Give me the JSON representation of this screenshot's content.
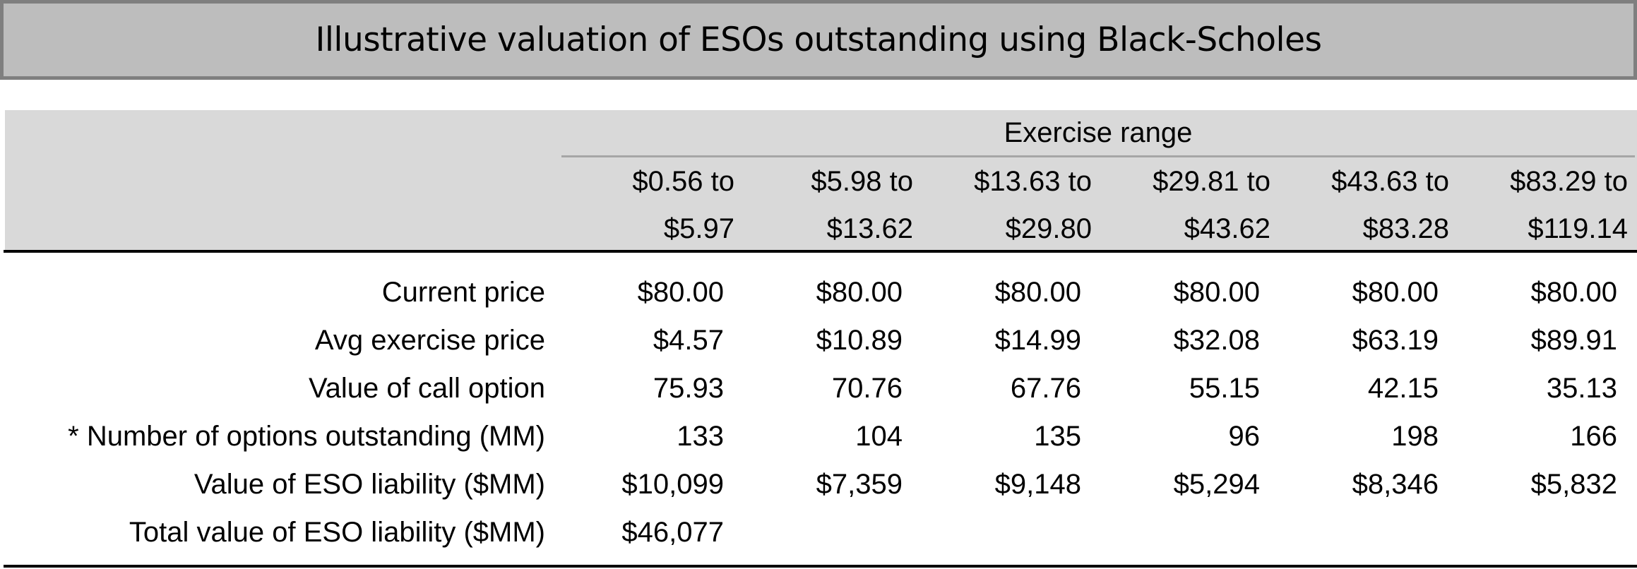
{
  "title": "Illustrative valuation of ESOs outstanding using Black-Scholes",
  "header": {
    "group_label": "Exercise range",
    "columns": [
      {
        "line1": "$0.56 to",
        "line2": "$5.97"
      },
      {
        "line1": "$5.98 to",
        "line2": "$13.62"
      },
      {
        "line1": "$13.63 to",
        "line2": "$29.80"
      },
      {
        "line1": "$29.81 to",
        "line2": "$43.62"
      },
      {
        "line1": "$43.63 to",
        "line2": "$83.28"
      },
      {
        "line1": "$83.29 to",
        "line2": "$119.14"
      }
    ]
  },
  "rows": [
    {
      "label": "Current price",
      "values": [
        "$80.00",
        "$80.00",
        "$80.00",
        "$80.00",
        "$80.00",
        "$80.00"
      ]
    },
    {
      "label": "Avg exercise price",
      "values": [
        "$4.57",
        "$10.89",
        "$14.99",
        "$32.08",
        "$63.19",
        "$89.91"
      ]
    },
    {
      "label": "Value of call option",
      "values": [
        "75.93",
        "70.76",
        "67.76",
        "55.15",
        "42.15",
        "35.13"
      ]
    },
    {
      "label": "* Number of options outstanding (MM)",
      "values": [
        "133",
        "104",
        "135",
        "96",
        "198",
        "166"
      ]
    },
    {
      "label": "Value of ESO liability ($MM)",
      "values": [
        "$10,099",
        "$7,359",
        "$9,148",
        "$5,294",
        "$8,346",
        "$5,832"
      ]
    },
    {
      "label": "Total value of ESO liability ($MM)",
      "values": [
        "$46,077"
      ]
    }
  ]
}
